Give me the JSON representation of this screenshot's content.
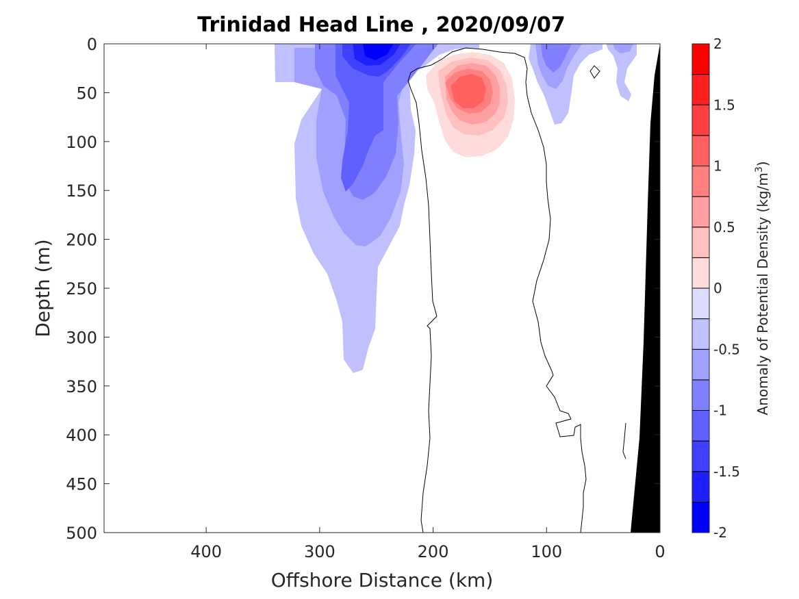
{
  "chart_data": {
    "type": "heatmap",
    "subtype": "filled contour section",
    "title": "Trinidad Head Line , 2020/09/07",
    "xlabel": "Offshore Distance (km)",
    "ylabel": "Depth (m)",
    "xlim": [
      490,
      0
    ],
    "ylim": [
      0,
      500
    ],
    "x_reversed": true,
    "y_reversed": true,
    "x_ticks": [
      400,
      300,
      200,
      100,
      0
    ],
    "y_ticks": [
      0,
      50,
      100,
      150,
      200,
      250,
      300,
      350,
      400,
      450,
      500
    ],
    "grid": false,
    "colorbar": {
      "label_main": "Anomaly of Potential Density (kg/m",
      "label_sup": "3",
      "label_end": ")",
      "range": [
        -2,
        2
      ],
      "ticks": [
        "2",
        "1.5",
        "1",
        "0.5",
        "0",
        "-0.5",
        "-1",
        "-1.5",
        "-2"
      ],
      "tick_values": [
        2,
        1.5,
        1,
        0.5,
        0,
        -0.5,
        -1,
        -1.5,
        -2
      ],
      "levels": [
        -2,
        -1.75,
        -1.5,
        -1.25,
        -1,
        -0.75,
        -0.5,
        -0.25,
        0,
        0.25,
        0.5,
        0.75,
        1,
        1.25,
        1.5,
        1.75,
        2
      ],
      "colors": [
        "#0000ff",
        "#2020ff",
        "#4040ff",
        "#6060ff",
        "#8080ff",
        "#a0a0ff",
        "#c0c0ff",
        "#dcdcff",
        "#ffffff",
        "#ffdcdc",
        "#ffc0c0",
        "#ffa0a0",
        "#ff8080",
        "#ff6060",
        "#ff4040",
        "#ff2020",
        "#ff0000"
      ]
    },
    "anomalies": [
      {
        "name": "surface negative core",
        "x_km": 250,
        "depth_m": 12,
        "peak": -1.75
      },
      {
        "name": "offshore negative tongue",
        "x_km": 265,
        "depth_m": 110,
        "peak": -1.0
      },
      {
        "name": "positive eddy",
        "x_km": 168,
        "depth_m": 45,
        "peak": 1.5
      },
      {
        "name": "nearshore negative patch",
        "x_km": 90,
        "depth_m": 15,
        "peak": -1.0
      }
    ],
    "zero_contour": "closed line around the positive eddy extending from the surface to 500 m between about 70 and 215 km",
    "bathymetry": "black wedge near 0-25 km"
  }
}
